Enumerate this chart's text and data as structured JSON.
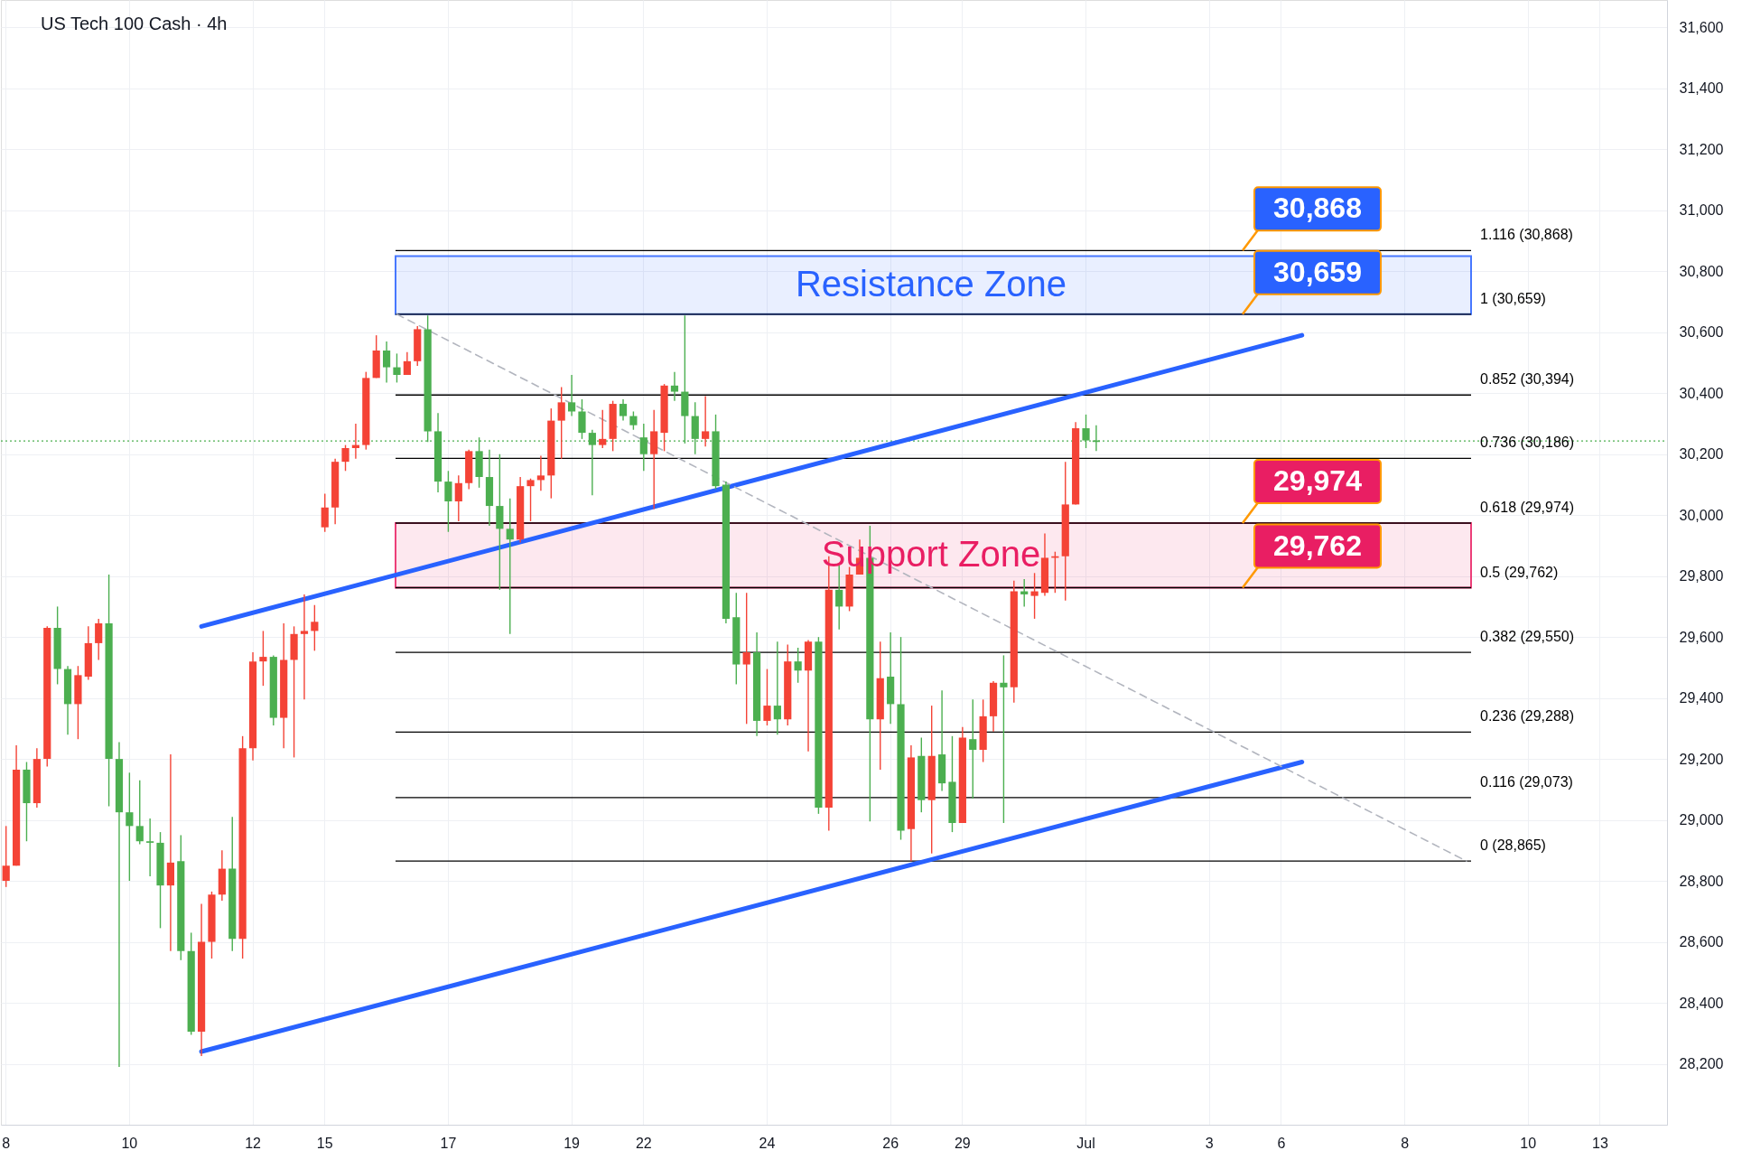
{
  "chart_data": {
    "type": "candlestick",
    "title": "US Tech 100 Cash · 4h",
    "categories": [
      "8",
      null,
      null,
      null,
      null,
      null,
      null,
      null,
      null,
      null,
      null,
      null,
      "10",
      null,
      null,
      null,
      null,
      null,
      null,
      null,
      null,
      null,
      null,
      null,
      "12",
      null,
      null,
      null,
      null,
      null,
      null,
      "15",
      null,
      null,
      null,
      null,
      null,
      null,
      null,
      null,
      null,
      null,
      null,
      "17",
      null,
      null,
      null,
      null,
      null,
      null,
      null,
      null,
      null,
      null,
      null,
      "19",
      null,
      null,
      null,
      null,
      null,
      null,
      "22",
      null,
      null,
      null,
      null,
      null,
      null,
      null,
      null,
      null,
      null,
      null,
      "24",
      null,
      null,
      null,
      null,
      null,
      null,
      null,
      null,
      null,
      null,
      null,
      "26",
      null,
      null,
      null,
      null,
      null,
      null,
      "29",
      null,
      null,
      null,
      null,
      null,
      null,
      null,
      null,
      null,
      null,
      null,
      "Jul",
      null,
      null,
      null,
      null,
      null,
      null,
      null,
      null,
      null,
      null,
      null,
      "3",
      null,
      null,
      null,
      null,
      null,
      null,
      "6",
      null,
      null,
      null,
      null,
      null,
      null,
      null,
      null,
      null,
      null,
      null,
      "8",
      null,
      null,
      null,
      null,
      null,
      null,
      null,
      null,
      null,
      null,
      null,
      "10",
      null,
      null,
      null,
      null,
      null,
      null,
      "13",
      null,
      null,
      null,
      null,
      null,
      null
    ],
    "ohlc": [
      [
        28800,
        28980,
        28780,
        28850
      ],
      [
        28850,
        29245,
        28850,
        29165
      ],
      [
        29165,
        29190,
        28930,
        29055
      ],
      [
        29055,
        29235,
        29040,
        29200
      ],
      [
        29200,
        29635,
        29175,
        29630
      ],
      [
        29630,
        29700,
        29445,
        29495
      ],
      [
        29495,
        29505,
        29280,
        29380
      ],
      [
        29380,
        29505,
        29265,
        29475
      ],
      [
        29470,
        29635,
        29460,
        29580
      ],
      [
        29580,
        29660,
        29525,
        29645
      ],
      [
        29645,
        29805,
        29045,
        29200
      ],
      [
        29200,
        29255,
        28190,
        29025
      ],
      [
        29025,
        29155,
        28800,
        28980
      ],
      [
        28980,
        29130,
        28920,
        28930
      ],
      [
        28930,
        29005,
        28815,
        28925
      ],
      [
        28925,
        28960,
        28645,
        28785
      ],
      [
        28785,
        29215,
        28570,
        28860
      ],
      [
        28865,
        28950,
        28540,
        28570
      ],
      [
        28570,
        28630,
        28295,
        28305
      ],
      [
        28305,
        28725,
        28225,
        28600
      ],
      [
        28600,
        28765,
        28545,
        28755
      ],
      [
        28755,
        28900,
        28735,
        28840
      ],
      [
        28840,
        29010,
        28570,
        28610
      ],
      [
        28610,
        29275,
        28545,
        29235
      ],
      [
        29235,
        29550,
        29195,
        29520
      ],
      [
        29520,
        29620,
        29440,
        29535
      ],
      [
        29535,
        29540,
        29310,
        29335
      ],
      [
        29335,
        29645,
        29235,
        29525
      ],
      [
        29525,
        29635,
        29205,
        29610
      ],
      [
        29610,
        29740,
        29395,
        29620
      ],
      [
        29620,
        29705,
        29555,
        29650
      ],
      [
        29960,
        30070,
        29945,
        30025
      ],
      [
        30025,
        30185,
        29970,
        30175
      ],
      [
        30175,
        30230,
        30145,
        30220
      ],
      [
        30220,
        30300,
        30185,
        30230
      ],
      [
        30230,
        30470,
        30215,
        30450
      ],
      [
        30450,
        30590,
        30450,
        30540
      ],
      [
        30540,
        30570,
        30435,
        30485
      ],
      [
        30485,
        30530,
        30435,
        30460
      ],
      [
        30460,
        30535,
        30460,
        30505
      ],
      [
        30505,
        30620,
        30490,
        30610
      ],
      [
        30610,
        30655,
        30240,
        30275
      ],
      [
        30275,
        30335,
        30075,
        30110
      ],
      [
        30110,
        30145,
        29945,
        30045
      ],
      [
        30045,
        30130,
        29980,
        30105
      ],
      [
        30105,
        30215,
        30085,
        30210
      ],
      [
        30210,
        30255,
        30090,
        30125
      ],
      [
        30125,
        30215,
        29965,
        30030
      ],
      [
        30030,
        30200,
        29755,
        29955
      ],
      [
        29955,
        30055,
        29610,
        29920
      ],
      [
        29920,
        30125,
        29910,
        30095
      ],
      [
        30095,
        30120,
        29980,
        30115
      ],
      [
        30115,
        30195,
        30080,
        30130
      ],
      [
        30130,
        30350,
        30055,
        30310
      ],
      [
        30310,
        30420,
        30185,
        30370
      ],
      [
        30370,
        30460,
        30325,
        30340
      ],
      [
        30340,
        30380,
        30250,
        30270
      ],
      [
        30270,
        30280,
        30065,
        30230
      ],
      [
        30230,
        30345,
        30220,
        30250
      ],
      [
        30250,
        30375,
        30210,
        30365
      ],
      [
        30365,
        30380,
        30310,
        30325
      ],
      [
        30325,
        30340,
        30280,
        30295
      ],
      [
        30255,
        30300,
        30145,
        30200
      ],
      [
        30200,
        30345,
        30020,
        30275
      ],
      [
        30270,
        30430,
        30210,
        30425
      ],
      [
        30425,
        30470,
        30375,
        30405
      ],
      [
        30405,
        30655,
        30235,
        30325
      ],
      [
        30325,
        30370,
        30200,
        30250
      ],
      [
        30250,
        30390,
        30225,
        30275
      ],
      [
        30275,
        30330,
        30085,
        30095
      ],
      [
        30100,
        30110,
        29645,
        29660
      ],
      [
        29665,
        29745,
        29445,
        29510
      ],
      [
        29510,
        29745,
        29315,
        29550
      ],
      [
        29550,
        29615,
        29275,
        29325
      ],
      [
        29325,
        29495,
        29310,
        29375
      ],
      [
        29375,
        29585,
        29280,
        29330
      ],
      [
        29330,
        29575,
        29310,
        29520
      ],
      [
        29520,
        29565,
        29450,
        29490
      ],
      [
        29490,
        29590,
        29225,
        29585
      ],
      [
        29585,
        29600,
        29020,
        29040
      ],
      [
        29040,
        29865,
        28965,
        29755
      ],
      [
        29755,
        29835,
        29625,
        29700
      ],
      [
        29700,
        29830,
        29685,
        29805
      ],
      [
        29805,
        29920,
        29805,
        29860
      ],
      [
        29860,
        29965,
        28995,
        29330
      ],
      [
        29330,
        29585,
        29165,
        29465
      ],
      [
        29470,
        29615,
        29315,
        29380
      ],
      [
        29380,
        29600,
        28935,
        28965
      ],
      [
        28970,
        29245,
        28865,
        29205
      ],
      [
        29210,
        29270,
        29025,
        29065
      ],
      [
        29065,
        29375,
        28890,
        29210
      ],
      [
        29215,
        29425,
        29095,
        29120
      ],
      [
        29125,
        29275,
        28960,
        28990
      ],
      [
        28990,
        29305,
        28990,
        29270
      ],
      [
        29265,
        29395,
        29070,
        29230
      ],
      [
        29230,
        29395,
        29190,
        29340
      ],
      [
        29340,
        29455,
        29290,
        29450
      ],
      [
        29450,
        29540,
        28990,
        29435
      ],
      [
        29435,
        29785,
        29385,
        29750
      ],
      [
        29750,
        29790,
        29700,
        29740
      ],
      [
        29735,
        29810,
        29660,
        29750
      ],
      [
        29745,
        29940,
        29735,
        29860
      ],
      [
        29860,
        29880,
        29745,
        29865
      ],
      [
        29865,
        30175,
        29720,
        30035
      ],
      [
        30035,
        30305,
        30035,
        30285
      ],
      [
        30285,
        30330,
        30220,
        30245
      ],
      [
        30245,
        30295,
        30210,
        30240
      ],
      null,
      null,
      null,
      null,
      null,
      null,
      null,
      null,
      null,
      null,
      null,
      null,
      null,
      null,
      null,
      null,
      null,
      null,
      null,
      null,
      null,
      null,
      null,
      null,
      null,
      null,
      null,
      null,
      null,
      null,
      null,
      null,
      null,
      null,
      null,
      null,
      null,
      null,
      null,
      null,
      null,
      null,
      null,
      null,
      null,
      null,
      null,
      null,
      null,
      null,
      null,
      null,
      null,
      null,
      null
    ],
    "colors": [
      "#f44336",
      "#f44336",
      "#4caf50",
      "#f44336",
      "#f44336",
      "#4caf50",
      "#4caf50",
      "#f44336",
      "#f44336",
      "#f44336",
      "#4caf50",
      "#4caf50",
      "#4caf50",
      "#4caf50",
      "#4caf50",
      "#4caf50",
      "#f44336",
      "#4caf50",
      "#4caf50",
      "#f44336",
      "#f44336",
      "#f44336",
      "#4caf50",
      "#f44336",
      "#f44336",
      "#f44336",
      "#4caf50",
      "#f44336",
      "#f44336",
      "#f44336",
      "#f44336",
      "#f44336",
      "#f44336",
      "#f44336",
      "#f44336",
      "#f44336",
      "#f44336",
      "#4caf50",
      "#4caf50",
      "#f44336",
      "#f44336",
      "#4caf50",
      "#4caf50",
      "#4caf50",
      "#f44336",
      "#f44336",
      "#4caf50",
      "#4caf50",
      "#4caf50",
      "#4caf50",
      "#f44336",
      "#f44336",
      "#f44336",
      "#f44336",
      "#f44336",
      "#4caf50",
      "#4caf50",
      "#4caf50",
      "#f44336",
      "#f44336",
      "#4caf50",
      "#4caf50",
      "#4caf50",
      "#f44336",
      "#f44336",
      "#4caf50",
      "#4caf50",
      "#4caf50",
      "#f44336",
      "#4caf50",
      "#4caf50",
      "#4caf50",
      "#f44336",
      "#4caf50",
      "#f44336",
      "#4caf50",
      "#f44336",
      "#4caf50",
      "#f44336",
      "#4caf50",
      "#f44336",
      "#4caf50",
      "#f44336",
      "#f44336",
      "#4caf50",
      "#f44336",
      "#4caf50",
      "#4caf50",
      "#f44336",
      "#4caf50",
      "#f44336",
      "#4caf50",
      "#4caf50",
      "#f44336",
      "#4caf50",
      "#f44336",
      "#f44336",
      "#4caf50",
      "#f44336",
      "#4caf50",
      "#f44336",
      "#f44336",
      "#f44336",
      "#f44336",
      "#f44336",
      "#4caf50",
      "#4caf50",
      null,
      null,
      null,
      null,
      null,
      null,
      null,
      null,
      null,
      null,
      null,
      null,
      null,
      null,
      null,
      null,
      null,
      null,
      null,
      null,
      null,
      null,
      null,
      null,
      null,
      null,
      null,
      null,
      null,
      null,
      null,
      null,
      null,
      null,
      null,
      null,
      null,
      null,
      null,
      null,
      null,
      null,
      null,
      null,
      null,
      null,
      null,
      null,
      null,
      null,
      null,
      null,
      null,
      null,
      null
    ],
    "ylim": [
      28000,
      31690
    ],
    "yticks": [
      {
        "value": 28200,
        "label": "28,200"
      },
      {
        "value": 28400,
        "label": "28,400"
      },
      {
        "value": 28600,
        "label": "28,600"
      },
      {
        "value": 28800,
        "label": "28,800"
      },
      {
        "value": 29000,
        "label": "29,000"
      },
      {
        "value": 29200,
        "label": "29,200"
      },
      {
        "value": 29400,
        "label": "29,400"
      },
      {
        "value": 29600,
        "label": "29,600"
      },
      {
        "value": 29800,
        "label": "29,800"
      },
      {
        "value": 30000,
        "label": "30,000"
      },
      {
        "value": 30200,
        "label": "30,200"
      },
      {
        "value": 30400,
        "label": "30,400"
      },
      {
        "value": 30600,
        "label": "30,600"
      },
      {
        "value": 30800,
        "label": "30,800"
      },
      {
        "value": 31000,
        "label": "31,000"
      },
      {
        "value": 31200,
        "label": "31,200"
      },
      {
        "value": 31400,
        "label": "31,400"
      },
      {
        "value": 31600,
        "label": "31,600"
      }
    ],
    "grid": true,
    "series": [
      {
        "type": "line",
        "color": "#2962ff",
        "line_style": "solid",
        "values": [
          null,
          null,
          null,
          null,
          null,
          null,
          null,
          null,
          null,
          null,
          null,
          null,
          null,
          null,
          null,
          null,
          null,
          null,
          null,
          29635,
          null,
          null,
          null,
          null,
          null,
          null,
          null,
          null,
          null,
          null,
          null,
          null,
          null,
          null,
          null,
          null,
          null,
          null,
          null,
          null,
          null,
          null,
          null,
          null,
          null,
          null,
          null,
          null,
          null,
          null,
          null,
          null,
          null,
          null,
          null,
          null,
          null,
          null,
          null,
          null,
          null,
          null,
          null,
          null,
          null,
          null,
          null,
          null,
          null,
          null,
          null,
          null,
          null,
          null,
          null,
          null,
          null,
          null,
          null,
          null,
          null,
          null,
          null,
          null,
          null,
          null,
          null,
          null,
          null,
          null,
          null,
          null,
          null,
          null,
          null,
          null,
          null,
          null,
          null,
          null,
          null,
          null,
          null,
          null,
          null,
          null,
          null,
          null,
          null,
          null,
          null,
          null,
          null,
          null,
          null,
          null,
          null,
          null,
          null,
          null,
          null,
          null,
          null,
          null,
          null,
          null,
          30590,
          null,
          null,
          null,
          null,
          null,
          null,
          null,
          null,
          null,
          null,
          null,
          null,
          null,
          null,
          null,
          null,
          null,
          null,
          null,
          null,
          null,
          null,
          null,
          null,
          null,
          null,
          null,
          null,
          null,
          null,
          null,
          null,
          null,
          null,
          null
        ]
      },
      {
        "type": "line",
        "color": "#2962ff",
        "line_style": "solid",
        "values": [
          null,
          null,
          null,
          null,
          null,
          null,
          null,
          null,
          null,
          null,
          null,
          null,
          null,
          null,
          null,
          null,
          null,
          null,
          null,
          28240,
          null,
          null,
          null,
          null,
          null,
          null,
          null,
          null,
          null,
          null,
          null,
          null,
          null,
          null,
          null,
          null,
          null,
          null,
          null,
          null,
          null,
          null,
          null,
          null,
          null,
          null,
          null,
          null,
          null,
          null,
          null,
          null,
          null,
          null,
          null,
          null,
          null,
          null,
          null,
          null,
          null,
          null,
          null,
          null,
          null,
          null,
          null,
          null,
          null,
          null,
          null,
          null,
          null,
          null,
          null,
          null,
          null,
          null,
          null,
          null,
          null,
          null,
          null,
          null,
          null,
          null,
          null,
          null,
          null,
          null,
          null,
          null,
          null,
          null,
          null,
          null,
          null,
          null,
          null,
          null,
          null,
          null,
          null,
          null,
          null,
          null,
          null,
          null,
          null,
          null,
          null,
          null,
          null,
          null,
          null,
          null,
          null,
          null,
          null,
          null,
          null,
          null,
          null,
          null,
          null,
          null,
          29190,
          null,
          null,
          null,
          null,
          null,
          null,
          null,
          null,
          null,
          null,
          null,
          null,
          null,
          null,
          null,
          null,
          null,
          null,
          null,
          null,
          null,
          null,
          null,
          null,
          null,
          null,
          null,
          null,
          null,
          null,
          null,
          null,
          null,
          null,
          null
        ]
      },
      {
        "type": "line",
        "color": "#b2b5be",
        "line_style": "dashed",
        "values": [
          null,
          null,
          null,
          null,
          null,
          null,
          null,
          null,
          null,
          null,
          null,
          null,
          null,
          null,
          null,
          null,
          null,
          null,
          null,
          null,
          null,
          null,
          null,
          null,
          null,
          null,
          null,
          null,
          null,
          null,
          null,
          null,
          null,
          null,
          null,
          null,
          null,
          null,
          30659,
          null,
          null,
          null,
          null,
          null,
          null,
          null,
          null,
          null,
          null,
          null,
          null,
          null,
          null,
          null,
          null,
          null,
          null,
          null,
          null,
          null,
          null,
          null,
          null,
          null,
          null,
          null,
          null,
          null,
          null,
          null,
          null,
          null,
          null,
          null,
          null,
          null,
          null,
          null,
          null,
          null,
          null,
          null,
          null,
          null,
          null,
          null,
          null,
          null,
          null,
          null,
          null,
          null,
          null,
          null,
          null,
          null,
          null,
          null,
          null,
          null,
          null,
          null,
          null,
          null,
          null,
          null,
          null,
          null,
          null,
          null,
          null,
          null,
          null,
          null,
          null,
          null,
          null,
          null,
          null,
          null,
          null,
          null,
          null,
          null,
          null,
          null,
          null,
          null,
          null,
          null,
          null,
          null,
          null,
          null,
          null,
          null,
          null,
          null,
          null,
          null,
          null,
          null,
          28865,
          null,
          null,
          null,
          null,
          null,
          null,
          null,
          null,
          null,
          null,
          null,
          null,
          null,
          null,
          null,
          null,
          null,
          null,
          null
        ]
      }
    ],
    "ref_lines": [
      {
        "axis": "y",
        "value": 30868,
        "label": "1.116 (30,868)",
        "color": "#000000"
      },
      {
        "axis": "y",
        "value": 30659,
        "label": "1 (30,659)",
        "color": "#000000"
      },
      {
        "axis": "y",
        "value": 30394,
        "label": "0.852 (30,394)",
        "color": "#000000"
      },
      {
        "axis": "y",
        "value": 30186,
        "label": "0.736 (30,186)",
        "color": "#000000"
      },
      {
        "axis": "y",
        "value": 29974,
        "label": "0.618 (29,974)",
        "color": "#000000"
      },
      {
        "axis": "y",
        "value": 29762,
        "label": "0.5 (29,762)",
        "color": "#000000"
      },
      {
        "axis": "y",
        "value": 29550,
        "label": "0.382 (29,550)",
        "color": "#000000"
      },
      {
        "axis": "y",
        "value": 29288,
        "label": "0.236 (29,288)",
        "color": "#000000"
      },
      {
        "axis": "y",
        "value": 29073,
        "label": "0.116 (29,073)",
        "color": "#000000"
      },
      {
        "axis": "y",
        "value": 28865,
        "label": "0 (28,865)",
        "color": "#000000"
      },
      {
        "axis": "y",
        "value": 30243,
        "color": "#4caf50",
        "line_style": "dotted"
      }
    ],
    "bands": [
      {
        "axis": "y",
        "from": 30659,
        "to": 30850,
        "label": "Resistance Zone",
        "color": "#2962ff"
      },
      {
        "axis": "y",
        "from": 29762,
        "to": 29974,
        "label": "Support Zone",
        "color": "#e91e63"
      }
    ],
    "annotations": [
      {
        "text": "30,868",
        "y": 30868
      },
      {
        "text": "30,659",
        "y": 30659
      },
      {
        "text": "29,974",
        "y": 29974
      },
      {
        "text": "29,762",
        "y": 29762
      }
    ]
  }
}
